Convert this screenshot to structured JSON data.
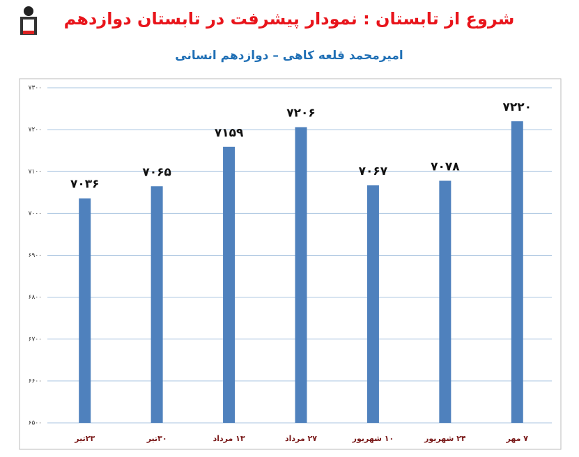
{
  "chart_data": {
    "type": "bar",
    "title": "شروع از تابستان : نمودار پیشرفت در تابستان دوازدهم",
    "subtitle": "امیرمحمد قلعه کاهی – دوازدهم انسانی",
    "categories": [
      "۲۳تیر",
      "۳۰تیر",
      "۱۳ مرداد",
      "۲۷ مرداد",
      "۱۰ شهریور",
      "۲۴ شهریور",
      "۷ مهر"
    ],
    "values": [
      7036,
      7065,
      7159,
      7206,
      7067,
      7078,
      7220
    ],
    "value_labels": [
      "۷۰۳۶",
      "۷۰۶۵",
      "۷۱۵۹",
      "۷۲۰۶",
      "۷۰۶۷",
      "۷۰۷۸",
      "۷۲۲۰"
    ],
    "color": "#4f81bd",
    "ylim": [
      6500,
      7300
    ],
    "yticks": [
      {
        "value": 6500,
        "label": "۶۵۰۰"
      },
      {
        "value": 6600,
        "label": "۶۶۰۰"
      },
      {
        "value": 6700,
        "label": "۶۷۰۰"
      },
      {
        "value": 6800,
        "label": "۶۸۰۰"
      },
      {
        "value": 6900,
        "label": "۶۹۰۰"
      },
      {
        "value": 7000,
        "label": "۷۰۰۰"
      },
      {
        "value": 7100,
        "label": "۷۱۰۰"
      },
      {
        "value": 7200,
        "label": "۷۲۰۰"
      },
      {
        "value": 7300,
        "label": "۷۳۰۰"
      }
    ],
    "grid": true
  }
}
